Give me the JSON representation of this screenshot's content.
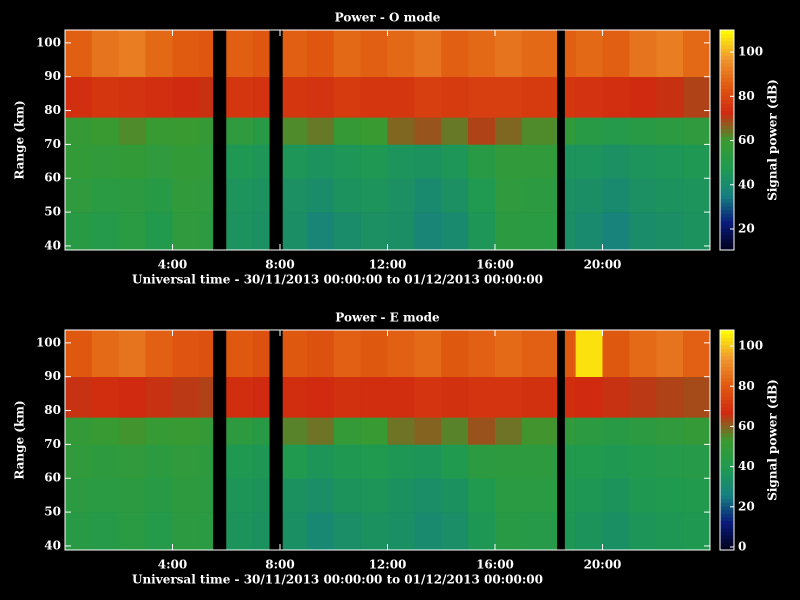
{
  "chart_data": [
    {
      "type": "heatmap",
      "title": "Power - O mode",
      "xlabel": "Universal time - 30/11/2013 00:00:00 to 01/12/2013 00:00:00",
      "ylabel": "Range (km)",
      "colorbar_label": "Signal power (dB)",
      "x_edges": [
        0,
        1,
        2,
        3,
        4,
        5,
        5.5,
        6,
        7,
        7.6,
        8.1,
        9,
        10,
        11,
        12,
        13,
        14,
        15,
        16,
        17,
        18.3,
        18.6,
        19,
        20,
        21,
        22,
        23,
        24
      ],
      "y_edges": [
        38.8,
        50,
        60,
        70,
        78,
        90,
        103.8
      ],
      "z": [
        [
          52,
          50,
          53,
          49,
          55,
          54,
          null,
          44,
          43,
          null,
          42,
          38,
          41,
          43,
          42,
          38,
          40,
          46,
          54,
          53,
          null,
          42,
          40,
          37,
          41,
          42,
          44
        ],
        [
          55,
          53,
          54,
          52,
          56,
          55,
          null,
          45,
          44,
          null,
          43,
          41,
          44,
          45,
          43,
          40,
          43,
          48,
          55,
          54,
          null,
          43,
          42,
          40,
          43,
          44,
          45
        ],
        [
          57,
          56,
          57,
          55,
          57,
          56,
          null,
          47,
          46,
          null,
          46,
          44,
          46,
          47,
          45,
          44,
          46,
          52,
          56,
          56,
          null,
          45,
          45,
          43,
          45,
          46,
          47
        ],
        [
          58,
          60,
          62,
          59,
          60,
          58,
          null,
          55,
          52,
          null,
          62,
          64,
          58,
          60,
          66,
          68,
          64,
          70,
          66,
          62,
          null,
          56,
          52,
          50,
          52,
          54,
          55
        ],
        [
          74,
          76,
          75,
          74,
          73,
          72,
          null,
          76,
          75,
          null,
          76,
          75,
          77,
          76,
          76,
          78,
          77,
          78,
          78,
          77,
          null,
          76,
          75,
          74,
          73,
          72,
          70
        ],
        [
          86,
          90,
          92,
          88,
          85,
          84,
          null,
          86,
          84,
          null,
          86,
          84,
          88,
          86,
          88,
          90,
          86,
          88,
          90,
          88,
          null,
          86,
          88,
          86,
          90,
          92,
          88
        ]
      ],
      "xlim": [
        0,
        24
      ],
      "ylim": [
        38.8,
        103.8
      ],
      "xticks": [
        {
          "value": 4,
          "label": "4:00"
        },
        {
          "value": 8,
          "label": "8:00"
        },
        {
          "value": 12,
          "label": "12:00"
        },
        {
          "value": 16,
          "label": "16:00"
        },
        {
          "value": 20,
          "label": "20:00"
        }
      ],
      "yticks": [
        40,
        50,
        60,
        70,
        80,
        90,
        100
      ],
      "clim": [
        10.5,
        110
      ],
      "cticks": [
        20,
        40,
        60,
        80,
        100
      ],
      "colormap": [
        "#000018",
        "#0a1a7a",
        "#168080",
        "#1f9a50",
        "#3a9a30",
        "#d02a10",
        "#e05a10",
        "#f09a30",
        "#ffff00"
      ]
    },
    {
      "type": "heatmap",
      "title": "Power - E mode",
      "xlabel": "Universal time - 30/11/2013 00:00:00 to 01/12/2013 00:00:00",
      "ylabel": "Range (km)",
      "colorbar_label": "Signal power (dB)",
      "x_edges": [
        0,
        1,
        2,
        3,
        4,
        5,
        5.5,
        6,
        7,
        7.6,
        8.1,
        9,
        10,
        11,
        12,
        13,
        14,
        15,
        16,
        17,
        18.3,
        18.6,
        19,
        20,
        21,
        22,
        23,
        24
      ],
      "y_edges": [
        38.8,
        50,
        60,
        70,
        78,
        90,
        103.8
      ],
      "z": [
        [
          44,
          43,
          45,
          42,
          46,
          45,
          null,
          36,
          35,
          null,
          34,
          30,
          33,
          35,
          34,
          31,
          33,
          38,
          44,
          43,
          null,
          38,
          36,
          34,
          37,
          38,
          39
        ],
        [
          46,
          45,
          46,
          44,
          47,
          46,
          null,
          37,
          36,
          null,
          35,
          33,
          36,
          37,
          35,
          33,
          35,
          40,
          45,
          45,
          null,
          39,
          38,
          36,
          39,
          40,
          41
        ],
        [
          48,
          47,
          48,
          46,
          48,
          47,
          null,
          39,
          38,
          null,
          40,
          37,
          39,
          40,
          38,
          37,
          40,
          46,
          47,
          47,
          null,
          41,
          41,
          39,
          41,
          42,
          43
        ],
        [
          50,
          52,
          54,
          51,
          52,
          50,
          null,
          47,
          44,
          null,
          56,
          58,
          50,
          52,
          58,
          60,
          56,
          62,
          58,
          54,
          null,
          48,
          46,
          44,
          46,
          48,
          50
        ],
        [
          66,
          68,
          67,
          66,
          65,
          64,
          null,
          68,
          67,
          null,
          68,
          67,
          69,
          68,
          68,
          70,
          69,
          70,
          70,
          69,
          null,
          68,
          67,
          66,
          65,
          64,
          63
        ],
        [
          80,
          84,
          86,
          82,
          79,
          78,
          null,
          80,
          78,
          null,
          80,
          78,
          82,
          80,
          82,
          84,
          80,
          82,
          84,
          82,
          null,
          80,
          104,
          80,
          84,
          86,
          82
        ]
      ],
      "xlim": [
        0,
        24
      ],
      "ylim": [
        38.8,
        103.8
      ],
      "xticks": [
        {
          "value": 4,
          "label": "4:00"
        },
        {
          "value": 8,
          "label": "8:00"
        },
        {
          "value": 12,
          "label": "12:00"
        },
        {
          "value": 16,
          "label": "16:00"
        },
        {
          "value": 20,
          "label": "20:00"
        }
      ],
      "yticks": [
        40,
        50,
        60,
        70,
        80,
        90,
        100
      ],
      "clim": [
        -1.5,
        108
      ],
      "cticks": [
        0,
        20,
        40,
        60,
        80,
        100
      ],
      "colormap": [
        "#000018",
        "#0a1a7a",
        "#168080",
        "#1f9a50",
        "#3a9a30",
        "#d02a10",
        "#e05a10",
        "#f09a30",
        "#ffff00"
      ]
    }
  ]
}
